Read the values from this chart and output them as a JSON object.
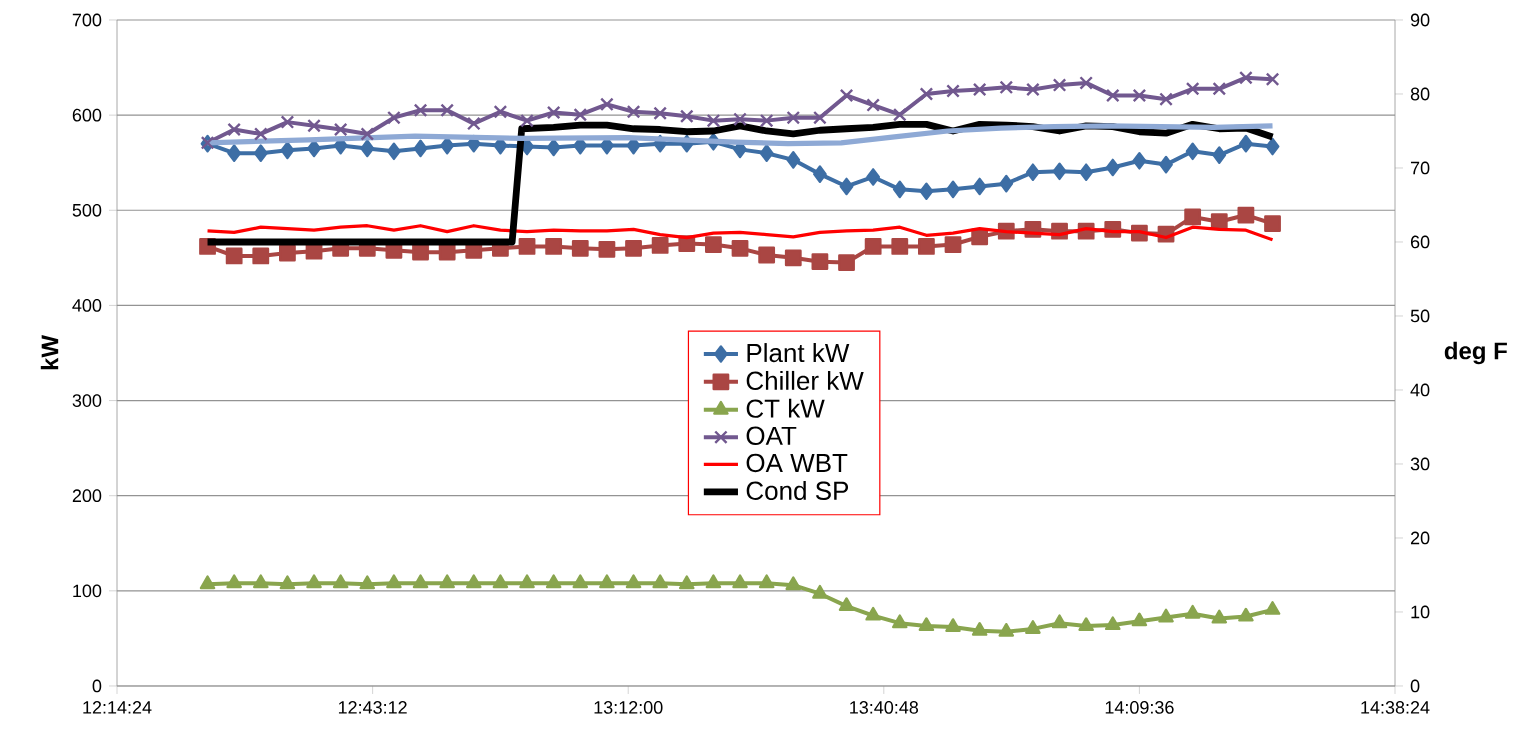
{
  "chart_data": {
    "type": "line",
    "ylabel": "kW",
    "y2label": "deg F",
    "x": [
      12.41,
      12.46,
      12.51,
      12.56,
      12.61,
      12.66,
      12.71,
      12.76,
      12.81,
      12.86,
      12.91,
      12.96,
      13.01,
      13.06,
      13.11,
      13.16,
      13.21,
      13.26,
      13.31,
      13.36,
      13.41,
      13.46,
      13.51,
      13.56,
      13.61,
      13.66,
      13.71,
      13.76,
      13.81,
      13.86,
      13.91,
      13.96,
      14.01,
      14.06,
      14.11,
      14.16,
      14.21,
      14.26,
      14.31,
      14.36,
      14.41
    ],
    "series": [
      {
        "name": "Plant kW",
        "color": "#3d6ea5",
        "marker": "diamond",
        "values": [
          570,
          560,
          560,
          563,
          565,
          568,
          565,
          562,
          565,
          568,
          570,
          568,
          567,
          566,
          568,
          568,
          568,
          570,
          570,
          572,
          564,
          560,
          553,
          538,
          525,
          535,
          522,
          520,
          522,
          525,
          528,
          540,
          541,
          540,
          545,
          552,
          548,
          562,
          558,
          570,
          567
        ]
      },
      {
        "name": "Chiller kW",
        "color": "#aa4643",
        "marker": "square",
        "values": [
          462,
          452,
          452,
          455,
          457,
          460,
          460,
          458,
          456,
          456,
          458,
          460,
          462,
          462,
          460,
          459,
          460,
          463,
          465,
          464,
          460,
          453,
          450,
          446,
          445,
          462,
          462,
          462,
          464,
          472,
          478,
          480,
          478,
          478,
          480,
          476,
          475,
          493,
          488,
          495,
          486
        ]
      },
      {
        "name": "CT kW",
        "color": "#89a54e",
        "marker": "triangle",
        "values": [
          107,
          108,
          108,
          107,
          108,
          108,
          107,
          108,
          108,
          108,
          108,
          108,
          108,
          108,
          108,
          108,
          108,
          108,
          107,
          108,
          108,
          108,
          106,
          97,
          84,
          74,
          66,
          63,
          62,
          58,
          57,
          60,
          66,
          63,
          64,
          68,
          72,
          76,
          71,
          73,
          80
        ]
      },
      {
        "name": "OAT",
        "color": "#71588f",
        "marker": "cross",
        "axis": "y2",
        "values": [
          73.4,
          75.2,
          74.6,
          76.2,
          75.7,
          75.2,
          74.6,
          76.8,
          77.8,
          77.8,
          76.0,
          77.6,
          76.4,
          77.5,
          77.2,
          78.6,
          77.6,
          77.4,
          77.0,
          76.4,
          76.6,
          76.4,
          76.8,
          76.8,
          79.8,
          78.5,
          77.2,
          80.0,
          80.4,
          80.6,
          80.9,
          80.6,
          81.2,
          81.5,
          79.8,
          79.8,
          79.3,
          80.7,
          80.7,
          82.2,
          82.0
        ]
      },
      {
        "name": "OA WBT",
        "color": "#ff0000",
        "marker": "none",
        "axis": "y2",
        "values": [
          61.5,
          61.3,
          62.0,
          61.8,
          61.6,
          62.0,
          62.2,
          61.6,
          62.2,
          61.4,
          62.2,
          61.6,
          61.4,
          61.6,
          61.5,
          61.5,
          61.7,
          61.0,
          60.6,
          61.2,
          61.3,
          61.0,
          60.7,
          61.3,
          61.5,
          61.6,
          62.0,
          60.9,
          61.2,
          61.8,
          61.4,
          61.2,
          61.0,
          61.8,
          61.4,
          61.4,
          60.6,
          62.0,
          61.7,
          61.6,
          60.3
        ]
      },
      {
        "name": "Cond SP",
        "color": "#000000",
        "marker": "none",
        "axis": "y2",
        "x": [
          12.41,
          12.6,
          12.8,
          12.982,
          13.0,
          13.06,
          13.11,
          13.16,
          13.21,
          13.26,
          13.31,
          13.36,
          13.41,
          13.46,
          13.51,
          13.56,
          13.61,
          13.66,
          13.71,
          13.76,
          13.81,
          13.86,
          13.91,
          13.96,
          14.01,
          14.06,
          14.11,
          14.16,
          14.21,
          14.26,
          14.31,
          14.36,
          14.41
        ],
        "values": [
          60,
          60,
          60,
          60,
          75.3,
          75.5,
          75.8,
          75.8,
          75.3,
          75.2,
          74.9,
          75.0,
          75.7,
          75.0,
          74.6,
          75.1,
          75.3,
          75.5,
          75.9,
          75.9,
          75.0,
          75.9,
          75.8,
          75.6,
          75.0,
          75.7,
          75.6,
          74.9,
          74.7,
          75.9,
          75.3,
          75.4,
          74.2
        ]
      },
      {
        "color": "#8ea9d5",
        "marker": "none",
        "axis": "y2",
        "x": [
          12.41,
          12.6,
          12.8,
          13.0,
          13.2,
          13.4,
          13.5,
          13.6,
          13.7,
          13.8,
          13.9,
          14.0,
          14.1,
          14.2,
          14.3,
          14.41
        ],
        "values": [
          73.4,
          73.8,
          74.3,
          74.0,
          74.1,
          73.5,
          73.3,
          73.4,
          74.2,
          75.0,
          75.4,
          75.6,
          75.7,
          75.6,
          75.5,
          75.7
        ]
      }
    ],
    "xlim": [
      12.24,
      14.64
    ],
    "xticks": [
      {
        "value": 12.24,
        "label": "12:14:24"
      },
      {
        "value": 12.72,
        "label": "12:43:12"
      },
      {
        "value": 13.2,
        "label": "13:12:00"
      },
      {
        "value": 13.68,
        "label": "13:40:48"
      },
      {
        "value": 14.16,
        "label": "14:09:36"
      },
      {
        "value": 14.64,
        "label": "14:38:24"
      }
    ],
    "ylim": [
      0,
      700
    ],
    "yticks": [
      0,
      100,
      200,
      300,
      400,
      500,
      600,
      700
    ],
    "y2lim": [
      0,
      90
    ],
    "y2ticks": [
      0,
      10,
      20,
      30,
      40,
      50,
      60,
      70,
      80,
      90
    ],
    "grid": "y",
    "legend": "center"
  }
}
